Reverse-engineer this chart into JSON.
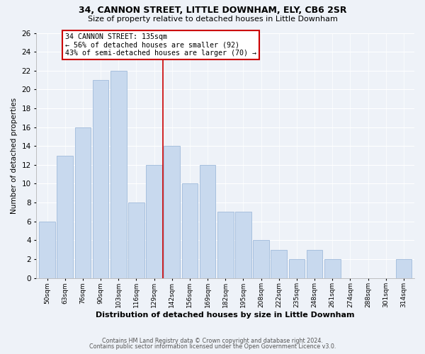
{
  "title": "34, CANNON STREET, LITTLE DOWNHAM, ELY, CB6 2SR",
  "subtitle": "Size of property relative to detached houses in Little Downham",
  "xlabel": "Distribution of detached houses by size in Little Downham",
  "ylabel": "Number of detached properties",
  "footer1": "Contains HM Land Registry data © Crown copyright and database right 2024.",
  "footer2": "Contains public sector information licensed under the Open Government Licence v3.0.",
  "bar_labels": [
    "50sqm",
    "63sqm",
    "76sqm",
    "90sqm",
    "103sqm",
    "116sqm",
    "129sqm",
    "142sqm",
    "156sqm",
    "169sqm",
    "182sqm",
    "195sqm",
    "208sqm",
    "222sqm",
    "235sqm",
    "248sqm",
    "261sqm",
    "274sqm",
    "288sqm",
    "301sqm",
    "314sqm"
  ],
  "bar_values": [
    6,
    13,
    16,
    21,
    22,
    8,
    12,
    14,
    10,
    12,
    7,
    7,
    4,
    3,
    2,
    3,
    2,
    0,
    0,
    0,
    2
  ],
  "bar_color": "#c8d9ee",
  "bar_edge_color": "#a8c0de",
  "ylim": [
    0,
    26
  ],
  "yticks": [
    0,
    2,
    4,
    6,
    8,
    10,
    12,
    14,
    16,
    18,
    20,
    22,
    24,
    26
  ],
  "property_line_x": 6.5,
  "property_line_color": "#cc0000",
  "annotation_title": "34 CANNON STREET: 135sqm",
  "annotation_line1": "← 56% of detached houses are smaller (92)",
  "annotation_line2": "43% of semi-detached houses are larger (70) →",
  "background_color": "#eef2f8",
  "grid_color": "#ffffff",
  "annotation_box_facecolor": "#ffffff",
  "annotation_box_edgecolor": "#cc0000"
}
